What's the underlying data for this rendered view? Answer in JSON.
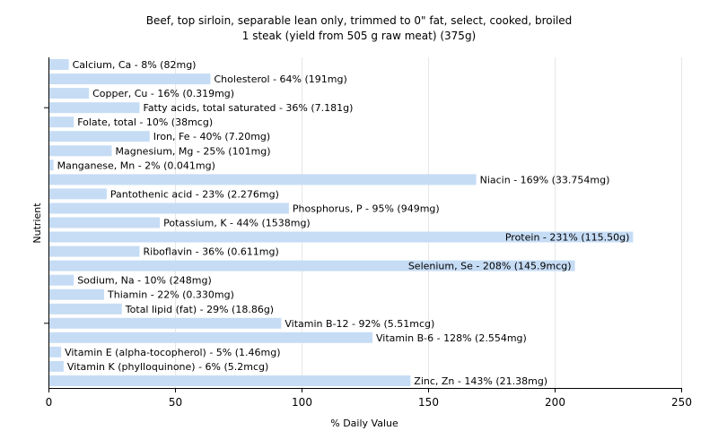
{
  "chart_data": {
    "type": "bar",
    "orientation": "horizontal",
    "title": "Beef, top sirloin, separable lean only, trimmed to 0\" fat, select, cooked, broiled",
    "subtitle": "1 steak (yield from 505 g raw meat) (375g)",
    "xlabel": "% Daily Value",
    "ylabel": "Nutrient",
    "xlim": [
      0,
      250
    ],
    "xticks": [
      0,
      50,
      100,
      150,
      200,
      250
    ],
    "grid": true,
    "legend": "none",
    "bar_color": "#c6dcf5",
    "categories": [
      "Calcium, Ca",
      "Cholesterol",
      "Copper, Cu",
      "Fatty acids, total saturated",
      "Folate, total",
      "Iron, Fe",
      "Magnesium, Mg",
      "Manganese, Mn",
      "Niacin",
      "Pantothenic acid",
      "Phosphorus, P",
      "Potassium, K",
      "Protein",
      "Riboflavin",
      "Selenium, Se",
      "Sodium, Na",
      "Thiamin",
      "Total lipid (fat)",
      "Vitamin B-12",
      "Vitamin B-6",
      "Vitamin E (alpha-tocopherol)",
      "Vitamin K (phylloquinone)",
      "Zinc, Zn"
    ],
    "values": [
      8,
      64,
      16,
      36,
      10,
      40,
      25,
      2,
      169,
      23,
      95,
      44,
      231,
      36,
      208,
      10,
      22,
      29,
      92,
      128,
      5,
      6,
      143
    ],
    "labels": [
      "Calcium, Ca - 8% (82mg)",
      "Cholesterol - 64% (191mg)",
      "Copper, Cu - 16% (0.319mg)",
      "Fatty acids, total saturated - 36% (7.181g)",
      "Folate, total - 10% (38mcg)",
      "Iron, Fe - 40% (7.20mg)",
      "Magnesium, Mg - 25% (101mg)",
      "Manganese, Mn - 2% (0.041mg)",
      "Niacin - 169% (33.754mg)",
      "Pantothenic acid - 23% (2.276mg)",
      "Phosphorus, P - 95% (949mg)",
      "Potassium, K - 44% (1538mg)",
      "Protein - 231% (115.50g)",
      "Riboflavin - 36% (0.611mg)",
      "Selenium, Se - 208% (145.9mcg)",
      "Sodium, Na - 10% (248mg)",
      "Thiamin - 22% (0.330mg)",
      "Total lipid (fat) - 29% (18.86g)",
      "Vitamin B-12 - 92% (5.51mcg)",
      "Vitamin B-6 - 128% (2.554mg)",
      "Vitamin E (alpha-tocopherol) - 5% (1.46mg)",
      "Vitamin K (phylloquinone) - 6% (5.2mcg)",
      "Zinc, Zn - 143% (21.38mg)"
    ]
  }
}
